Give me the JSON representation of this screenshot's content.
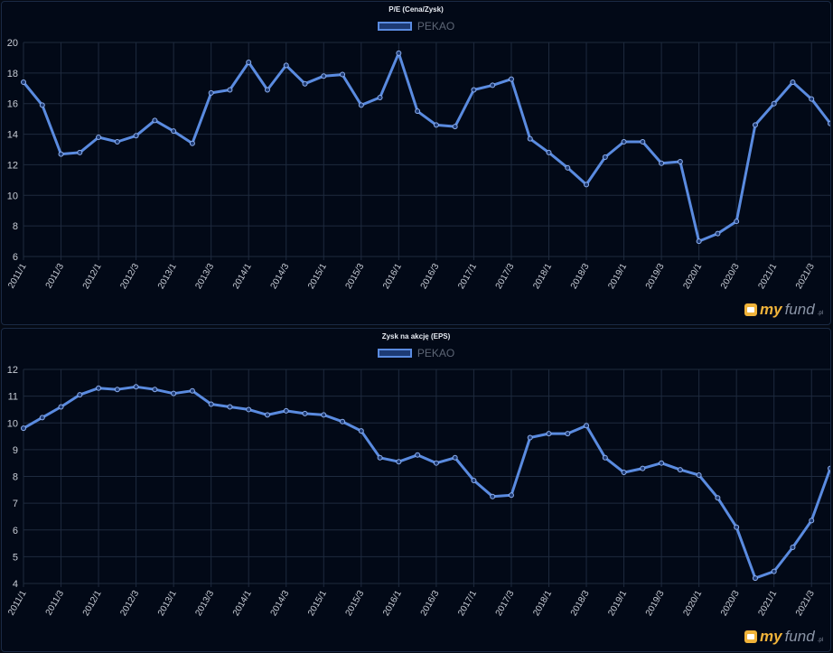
{
  "brand": {
    "logo_my": "my",
    "logo_fund": "fund",
    "logo_pl": ".pl"
  },
  "chart_data": [
    {
      "type": "line",
      "title": "P/E (Cena/Zysk)",
      "ylim": [
        6,
        20
      ],
      "yticks": [
        6,
        8,
        10,
        12,
        14,
        16,
        18,
        20
      ],
      "grid": true,
      "legend_position": "top-center",
      "categories": [
        "2011/1",
        "2011/2",
        "2011/3",
        "2011/4",
        "2012/1",
        "2012/2",
        "2012/3",
        "2012/4",
        "2013/1",
        "2013/2",
        "2013/3",
        "2013/4",
        "2014/1",
        "2014/2",
        "2014/3",
        "2014/4",
        "2015/1",
        "2015/2",
        "2015/3",
        "2015/4",
        "2016/1",
        "2016/2",
        "2016/3",
        "2016/4",
        "2017/1",
        "2017/2",
        "2017/3",
        "2017/4",
        "2018/1",
        "2018/2",
        "2018/3",
        "2018/4",
        "2019/1",
        "2019/2",
        "2019/3",
        "2019/4",
        "2020/1",
        "2020/2",
        "2020/3",
        "2020/4",
        "2021/1",
        "2021/2",
        "2021/3",
        "2021/4"
      ],
      "tick_labels": [
        "2011/1",
        "2011/3",
        "2012/1",
        "2012/3",
        "2013/1",
        "2013/3",
        "2014/1",
        "2014/3",
        "2015/1",
        "2015/3",
        "2016/1",
        "2016/3",
        "2017/1",
        "2017/3",
        "2018/1",
        "2018/3",
        "2019/1",
        "2019/3",
        "2020/1",
        "2020/3",
        "2021/1",
        "2021/3"
      ],
      "series": [
        {
          "name": "PEKAO",
          "color": "#5a8be0",
          "values": [
            17.4,
            15.9,
            12.7,
            12.8,
            13.8,
            13.5,
            13.9,
            14.9,
            14.2,
            13.4,
            16.7,
            16.9,
            18.7,
            16.9,
            18.5,
            17.3,
            17.8,
            17.9,
            15.9,
            16.4,
            19.3,
            15.5,
            14.6,
            14.5,
            16.9,
            17.2,
            17.6,
            13.7,
            12.8,
            11.8,
            10.7,
            12.5,
            13.5,
            13.5,
            12.1,
            12.2,
            7.0,
            7.5,
            8.3,
            14.6,
            16.0,
            17.4,
            16.3,
            14.7
          ]
        }
      ]
    },
    {
      "type": "line",
      "title": "Zysk na akcję (EPS)",
      "ylim": [
        4,
        12
      ],
      "yticks": [
        4,
        5,
        6,
        7,
        8,
        9,
        10,
        11,
        12
      ],
      "grid": true,
      "legend_position": "top-center",
      "categories": [
        "2011/1",
        "2011/2",
        "2011/3",
        "2011/4",
        "2012/1",
        "2012/2",
        "2012/3",
        "2012/4",
        "2013/1",
        "2013/2",
        "2013/3",
        "2013/4",
        "2014/1",
        "2014/2",
        "2014/3",
        "2014/4",
        "2015/1",
        "2015/2",
        "2015/3",
        "2015/4",
        "2016/1",
        "2016/2",
        "2016/3",
        "2016/4",
        "2017/1",
        "2017/2",
        "2017/3",
        "2017/4",
        "2018/1",
        "2018/2",
        "2018/3",
        "2018/4",
        "2019/1",
        "2019/2",
        "2019/3",
        "2019/4",
        "2020/1",
        "2020/2",
        "2020/3",
        "2020/4",
        "2021/1",
        "2021/2",
        "2021/3",
        "2021/4"
      ],
      "tick_labels": [
        "2011/1",
        "2011/3",
        "2012/1",
        "2012/3",
        "2013/1",
        "2013/3",
        "2014/1",
        "2014/3",
        "2015/1",
        "2015/3",
        "2016/1",
        "2016/3",
        "2017/1",
        "2017/3",
        "2018/1",
        "2018/3",
        "2019/1",
        "2019/3",
        "2020/1",
        "2020/3",
        "2021/1",
        "2021/3"
      ],
      "series": [
        {
          "name": "PEKAO",
          "color": "#5a8be0",
          "values": [
            9.8,
            10.2,
            10.6,
            11.05,
            11.3,
            11.25,
            11.35,
            11.25,
            11.1,
            11.2,
            10.7,
            10.6,
            10.5,
            10.3,
            10.45,
            10.35,
            10.3,
            10.05,
            9.7,
            8.7,
            8.55,
            8.8,
            8.5,
            8.7,
            7.85,
            7.25,
            7.3,
            9.45,
            9.6,
            9.6,
            9.9,
            8.7,
            8.15,
            8.3,
            8.5,
            8.25,
            8.05,
            7.2,
            6.1,
            4.2,
            4.45,
            5.35,
            6.35,
            8.3
          ]
        }
      ]
    }
  ]
}
